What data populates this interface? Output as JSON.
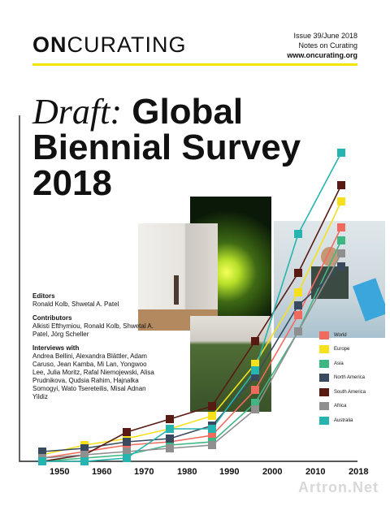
{
  "logo": {
    "prefix": "ON",
    "rest": "CURATING"
  },
  "issue": {
    "line1": "Issue 39/June 2018",
    "line2": "Notes on Curating",
    "url": "www.oncurating.org"
  },
  "title": {
    "draft": "Draft:",
    "w1": "Global",
    "line2": "Biennial Survey",
    "line3": "2018"
  },
  "editors": {
    "heading": "Editors",
    "names": "Ronald Kolb, Shwetal A. Patel"
  },
  "contributors": {
    "heading": "Contributors",
    "names": "Alkisti Efthymiou, Ronald Kolb, Shwetal A. Patel, Jörg Scheller"
  },
  "interviews": {
    "heading": "Interviews with",
    "names": "Andrea Bellini, Alexandra Blättler, Adam Caruso, Jean Kamba, Mi Lan, Yongwoo Lee, Julia Moritz, Rafal Niemojewski, Alisa Prudnikova, Qudsia Rahim, Hajnalka Somogyi, Wato Tsereteilis, Misal Adnan Yildiz"
  },
  "watermark": "Artron.Net",
  "chart_data": {
    "type": "line",
    "x": [
      1950,
      1960,
      1970,
      1980,
      1990,
      2000,
      2010,
      2018
    ],
    "x_tick_labels": [
      "1950",
      "1960",
      "1970",
      "1980",
      "1990",
      "2000",
      "2010",
      "2018"
    ],
    "series": [
      {
        "name": "World",
        "color": "#f06b5e",
        "values": [
          1,
          3,
          5,
          6,
          8,
          22,
          45,
          72
        ]
      },
      {
        "name": "Europe",
        "color": "#f4e11c",
        "values": [
          2,
          5,
          7,
          10,
          14,
          30,
          52,
          80
        ]
      },
      {
        "name": "Asia",
        "color": "#3fb785",
        "values": [
          0,
          1,
          2,
          5,
          6,
          18,
          40,
          68
        ]
      },
      {
        "name": "North America",
        "color": "#3a4a5e",
        "values": [
          3,
          4,
          6,
          7,
          11,
          26,
          48,
          60
        ]
      },
      {
        "name": "South America",
        "color": "#5a1a14",
        "values": [
          0,
          2,
          9,
          13,
          17,
          37,
          58,
          85
        ]
      },
      {
        "name": "Africa",
        "color": "#8f8f8f",
        "values": [
          1,
          2,
          3,
          4,
          5,
          16,
          40,
          64
        ]
      },
      {
        "name": "Australia",
        "color": "#25b4b0",
        "values": [
          0,
          0,
          1,
          10,
          10,
          28,
          70,
          95
        ]
      }
    ],
    "ylim": [
      0,
      100
    ]
  }
}
